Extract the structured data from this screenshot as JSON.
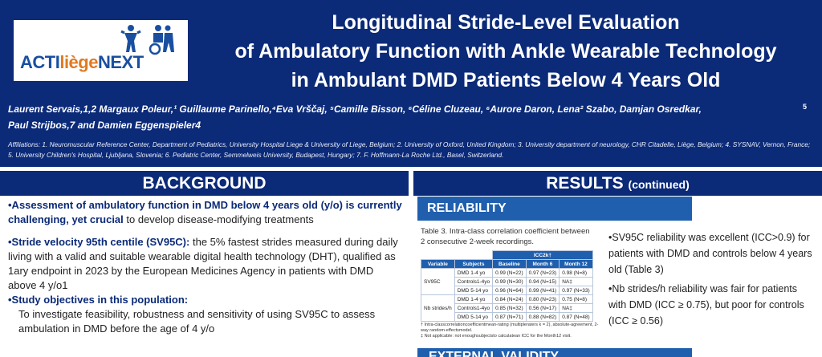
{
  "logo": {
    "prefix": "ACTI",
    "middle": "liège",
    "suffix": "NEXT"
  },
  "title": {
    "line1": "Longitudinal Stride-Level Evaluation",
    "line2": "of Ambulatory Function with Ankle Wearable Technology",
    "line3": "in Ambulant DMD Patients Below 4 Years Old"
  },
  "authors": {
    "line1": "Laurent Servais,1,2 Margaux Poleur,¹ Guillaume Parinello,⁴Eva Vrščaj, ⁵Camille Bisson, ⁶Céline Cluzeau, ⁶Aurore Daron, Lena² Szabo, Damjan Osredkar,",
    "line2": "Paul Strijbos,7 and Damien Eggenspieler4",
    "sup": "5"
  },
  "affiliations": "Affiliations: 1. Neuromuscular Reference Center, Department of Pediatrics, University Hospital Liege & University of Liege, Belgium; 2. University of Oxford, United Kingdom; 3. University department of neurology, CHR Citadelle, Liège, Belgium; 4. SYSNAV, Vernon, France; 5. University Children's Hospital, Ljubljana, Slovenia; 6. Pediatric Center, Semmelweis University, Budapest, Hungary; 7. F. Hoffmann-La Roche Ltd., Basel, Switzerland.",
  "background": {
    "heading": "BACKGROUND",
    "p1_bold": "•Assessment of ambulatory function in DMD below 4 years old (y/o) is currently challenging, yet crucial",
    "p1_rest": " to develop disease-modifying treatments",
    "p2_bold": "•Stride velocity 95th centile (SV95C):",
    "p2_rest": " the 5% fastest strides measured during daily living with a valid and suitable wearable digital health technology (DHT), qualified as 1ary endpoint in 2023 by the European Medicines Agency in patients with DMD above 4 y/o1",
    "p3_bold": "•Study objectives in this population:",
    "p4": "To investigate feasibility, robustness and sensitivity of using SV95C to assess ambulation in DMD before the age of 4 y/o"
  },
  "results": {
    "heading": "RESULTS",
    "heading_suffix": "(continued)",
    "reliability": "RELIABILITY",
    "table_caption": "Table 3. Intra-class correlation coefficient between 2 consecutive 2-week recordings.",
    "table": {
      "group_header": "ICC2k†",
      "headers": [
        "Variable",
        "Subjects",
        "Baseline",
        "Month 6",
        "Month 12"
      ],
      "groups": [
        {
          "variable": "SV95C",
          "rows": [
            [
              "DMD 1-4 yo",
              "0.99 (N=22)",
              "0.97 (N=23)",
              "0.98 (N=8)"
            ],
            [
              "Controls1-4yo",
              "0.99 (N=30)",
              "0.94 (N=15)",
              "NA‡"
            ],
            [
              "DMD 5-14 yo",
              "0.96 (N=64)",
              "0.99 (N=41)",
              "0.97 (N=33)"
            ]
          ]
        },
        {
          "variable": "Nb strides/h",
          "rows": [
            [
              "DMD 1-4 yo",
              "0.84 (N=24)",
              "0.80 (N=23)",
              "0.75 (N=8)"
            ],
            [
              "Controls1-4yo",
              "0.85 (N=32)",
              "0.56 (N=17)",
              "NA‡"
            ],
            [
              "DMD 5-14 yo",
              "0.87 (N=71)",
              "0.88 (N=82)",
              "0.87 (N=48)"
            ]
          ]
        }
      ]
    },
    "footnote1": "† Intra-classcorrelationcoefficientmean-rating (multipleraters k = 2), absolute-agreement, 2-way random-effectsmodel.",
    "footnote2": "‡ Not applicable: not enoughsubjectsto calculatean ICC for the Month12 visit.",
    "bullet1": "•SV95C reliability was excellent (ICC>0.9) for patients with DMD and controls below 4 years old (Table 3)",
    "bullet2": "•Nb strides/h reliability was fair for patients with DMD (ICC ≥ 0.75), but poor for controls (ICC ≥ 0.56)",
    "external_validity": "EXTERNAL VALIDITY"
  }
}
